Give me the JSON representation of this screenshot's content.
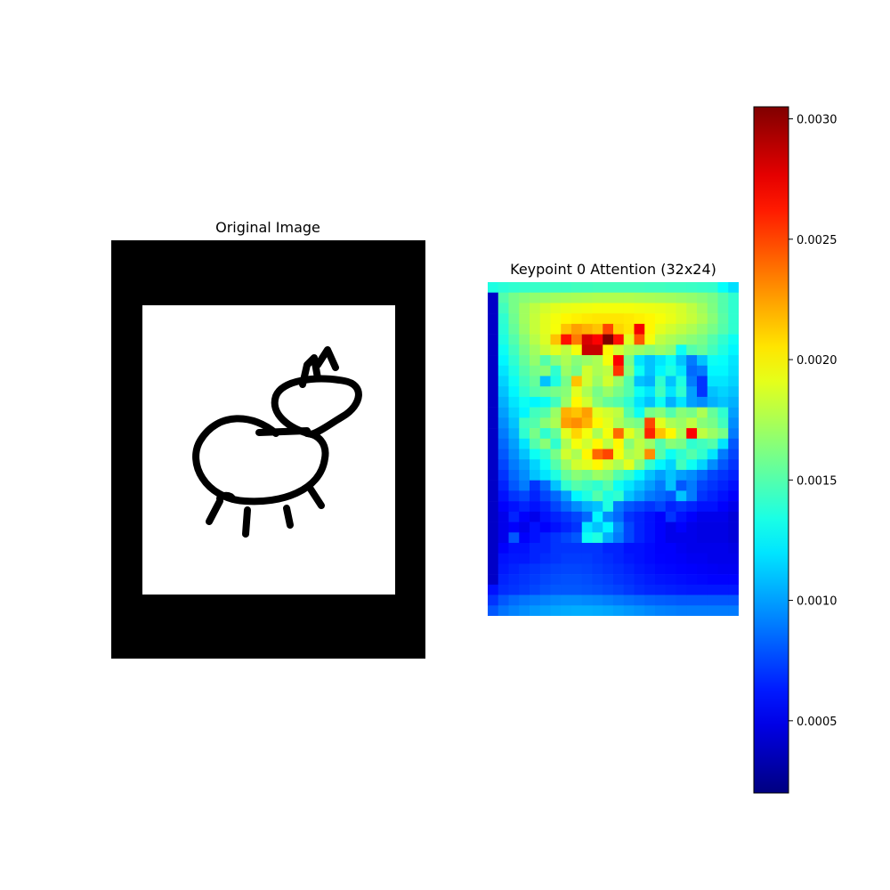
{
  "figure": {
    "left_title": "Original Image",
    "right_title": "Keypoint 0 Attention (32x24)"
  },
  "original_image": {
    "description_icon": "doodle-animal-drawing",
    "background_color": "#000000",
    "paper_color": "#ffffff",
    "stroke_color": "#000000"
  },
  "chart_data": {
    "type": "heatmap",
    "title": "Keypoint 0 Attention (32x24)",
    "rows": 32,
    "cols": 24,
    "colormap": "jet",
    "vmin": 0.0002,
    "vmax": 0.00305,
    "colorbar_ticks": [
      0.0005,
      0.001,
      0.0015,
      0.002,
      0.0025,
      0.003
    ],
    "colorbar_tick_labels": [
      "0.0005",
      "0.0010",
      "0.0015",
      "0.0020",
      "0.0025",
      "0.0030"
    ],
    "values": [
      [
        0.00135,
        0.00138,
        0.0014,
        0.00141,
        0.00142,
        0.00143,
        0.00144,
        0.00144,
        0.00145,
        0.00145,
        0.00146,
        0.00146,
        0.00146,
        0.00146,
        0.00146,
        0.00145,
        0.00145,
        0.00144,
        0.00144,
        0.00143,
        0.00142,
        0.00141,
        0.00128,
        0.00118
      ],
      [
        0.0004,
        0.0015,
        0.0016,
        0.00165,
        0.00168,
        0.0017,
        0.00172,
        0.00173,
        0.00174,
        0.00175,
        0.00176,
        0.00176,
        0.00176,
        0.00176,
        0.00175,
        0.00174,
        0.00173,
        0.00172,
        0.0017,
        0.00168,
        0.00165,
        0.0016,
        0.0015,
        0.0014
      ],
      [
        0.0004,
        0.00145,
        0.0016,
        0.00172,
        0.0018,
        0.00186,
        0.0019,
        0.00192,
        0.00193,
        0.00194,
        0.00195,
        0.00195,
        0.00195,
        0.00195,
        0.00194,
        0.00193,
        0.00192,
        0.0019,
        0.00186,
        0.0018,
        0.00172,
        0.00162,
        0.0015,
        0.0014
      ],
      [
        0.0004,
        0.0014,
        0.00158,
        0.00172,
        0.00182,
        0.0019,
        0.00195,
        0.002,
        0.00202,
        0.00204,
        0.00205,
        0.00205,
        0.00205,
        0.00204,
        0.00202,
        0.002,
        0.00196,
        0.00192,
        0.00187,
        0.00182,
        0.00175,
        0.00165,
        0.00152,
        0.0014
      ],
      [
        0.0004,
        0.00138,
        0.00155,
        0.0017,
        0.00182,
        0.0019,
        0.00196,
        0.00215,
        0.00225,
        0.0022,
        0.00215,
        0.0025,
        0.0021,
        0.00205,
        0.00272,
        0.002,
        0.0019,
        0.00185,
        0.0018,
        0.00175,
        0.00168,
        0.0016,
        0.0015,
        0.0014
      ],
      [
        0.0004,
        0.00135,
        0.0015,
        0.00165,
        0.00178,
        0.00188,
        0.00215,
        0.00265,
        0.00235,
        0.0028,
        0.0027,
        0.00305,
        0.00265,
        0.0019,
        0.00245,
        0.00195,
        0.0018,
        0.00175,
        0.0017,
        0.00165,
        0.0016,
        0.0015,
        0.0014,
        0.0013
      ],
      [
        0.0004,
        0.0013,
        0.00145,
        0.0016,
        0.00172,
        0.00182,
        0.0019,
        0.0018,
        0.00195,
        0.00285,
        0.00285,
        0.002,
        0.00185,
        0.00175,
        0.0017,
        0.00165,
        0.0017,
        0.00165,
        0.0013,
        0.0015,
        0.00155,
        0.00145,
        0.00135,
        0.00125
      ],
      [
        0.0004,
        0.00125,
        0.0014,
        0.00155,
        0.00168,
        0.0015,
        0.00165,
        0.00175,
        0.00165,
        0.0017,
        0.00175,
        0.00195,
        0.0027,
        0.0016,
        0.0012,
        0.0011,
        0.0012,
        0.0013,
        0.0011,
        0.0009,
        0.0011,
        0.0013,
        0.00128,
        0.0012
      ],
      [
        0.0004,
        0.0012,
        0.00135,
        0.0015,
        0.0016,
        0.00165,
        0.0014,
        0.0017,
        0.0016,
        0.00185,
        0.00175,
        0.0018,
        0.00255,
        0.00165,
        0.0013,
        0.0011,
        0.00125,
        0.00135,
        0.0012,
        0.00085,
        0.0009,
        0.00125,
        0.00125,
        0.00118
      ],
      [
        0.0004,
        0.00115,
        0.0013,
        0.00145,
        0.00155,
        0.0011,
        0.00135,
        0.0016,
        0.00215,
        0.00185,
        0.0017,
        0.00185,
        0.0017,
        0.0015,
        0.0011,
        0.00105,
        0.0014,
        0.0011,
        0.00135,
        0.0009,
        0.0007,
        0.0012,
        0.0012,
        0.00115
      ],
      [
        0.0004,
        0.0011,
        0.00125,
        0.0014,
        0.0015,
        0.00155,
        0.0016,
        0.00165,
        0.0019,
        0.00175,
        0.0016,
        0.0017,
        0.0016,
        0.0015,
        0.0013,
        0.0012,
        0.00145,
        0.0012,
        0.0014,
        0.001,
        0.0007,
        0.0011,
        0.00115,
        0.0011
      ],
      [
        0.0004,
        0.00105,
        0.0012,
        0.0013,
        0.00125,
        0.0013,
        0.00145,
        0.0017,
        0.002,
        0.00185,
        0.00165,
        0.00155,
        0.0015,
        0.0014,
        0.0012,
        0.0011,
        0.0013,
        0.00105,
        0.0012,
        0.001,
        0.00095,
        0.00105,
        0.0011,
        0.00105
      ],
      [
        0.0004,
        0.001,
        0.00115,
        0.00125,
        0.00145,
        0.0015,
        0.0017,
        0.0022,
        0.00215,
        0.00225,
        0.0019,
        0.00185,
        0.0018,
        0.0015,
        0.0013,
        0.0016,
        0.00165,
        0.0015,
        0.00165,
        0.0016,
        0.00175,
        0.00155,
        0.0014,
        0.001
      ],
      [
        0.0004,
        0.00095,
        0.0011,
        0.00145,
        0.0015,
        0.00165,
        0.00175,
        0.00225,
        0.0023,
        0.0022,
        0.002,
        0.0019,
        0.00175,
        0.00165,
        0.0016,
        0.0025,
        0.0019,
        0.00175,
        0.0017,
        0.0018,
        0.00165,
        0.0016,
        0.00145,
        0.00095
      ],
      [
        0.0004,
        0.0009,
        0.00105,
        0.0014,
        0.0016,
        0.0014,
        0.00155,
        0.0019,
        0.0021,
        0.00195,
        0.00175,
        0.00195,
        0.0024,
        0.0019,
        0.00175,
        0.0026,
        0.00215,
        0.002,
        0.00175,
        0.0027,
        0.0018,
        0.0017,
        0.0016,
        0.0009
      ],
      [
        0.0004,
        0.00085,
        0.001,
        0.0012,
        0.0015,
        0.00165,
        0.0014,
        0.00175,
        0.00195,
        0.00185,
        0.002,
        0.0018,
        0.002,
        0.00165,
        0.0018,
        0.0017,
        0.0015,
        0.00165,
        0.0016,
        0.0014,
        0.00145,
        0.0015,
        0.0012,
        0.0008
      ],
      [
        0.0004,
        0.0008,
        0.00095,
        0.0011,
        0.0013,
        0.0014,
        0.0016,
        0.00185,
        0.00175,
        0.002,
        0.0024,
        0.0025,
        0.00195,
        0.00175,
        0.0018,
        0.0023,
        0.0015,
        0.0013,
        0.0014,
        0.0015,
        0.0014,
        0.0012,
        0.0009,
        0.00075
      ],
      [
        0.0004,
        0.00075,
        0.0009,
        0.001,
        0.00115,
        0.0013,
        0.0015,
        0.0017,
        0.00185,
        0.0019,
        0.002,
        0.00185,
        0.00175,
        0.0019,
        0.00165,
        0.0014,
        0.00125,
        0.00115,
        0.00145,
        0.0013,
        0.00115,
        0.00095,
        0.0008,
        0.0007
      ],
      [
        0.0004,
        0.0007,
        0.00085,
        0.00095,
        0.0011,
        0.0012,
        0.00135,
        0.00155,
        0.00165,
        0.0016,
        0.0017,
        0.00165,
        0.0015,
        0.0014,
        0.00125,
        0.0011,
        0.001,
        0.0011,
        0.001,
        0.00095,
        0.00085,
        0.00075,
        0.0007,
        0.00065
      ],
      [
        0.0004,
        0.00065,
        0.0008,
        0.0009,
        0.0007,
        0.00085,
        0.0011,
        0.0014,
        0.0015,
        0.00145,
        0.0014,
        0.0015,
        0.0013,
        0.0012,
        0.0011,
        0.001,
        0.0009,
        0.0011,
        0.0008,
        0.0009,
        0.00075,
        0.0007,
        0.00065,
        0.0006
      ],
      [
        0.0004,
        0.0006,
        0.0007,
        0.00075,
        0.00065,
        0.00075,
        0.00085,
        0.001,
        0.00125,
        0.00135,
        0.0015,
        0.00135,
        0.0014,
        0.0011,
        0.001,
        0.0009,
        0.00085,
        0.0008,
        0.0011,
        0.0009,
        0.0007,
        0.00065,
        0.0006,
        0.00055
      ],
      [
        0.0004,
        0.00055,
        0.0006,
        0.00065,
        0.0006,
        0.00065,
        0.00075,
        0.00085,
        0.00095,
        0.00105,
        0.0011,
        0.00135,
        0.0009,
        0.0008,
        0.00075,
        0.0007,
        0.00075,
        0.00065,
        0.0007,
        0.00065,
        0.0006,
        0.0006,
        0.00055,
        0.0005
      ],
      [
        0.0004,
        0.0005,
        0.00065,
        0.00055,
        0.0005,
        0.0006,
        0.00065,
        0.0007,
        0.00075,
        0.00085,
        0.00125,
        0.00095,
        0.00085,
        0.0007,
        0.00065,
        0.0006,
        0.00055,
        0.0007,
        0.0006,
        0.00055,
        0.0005,
        0.0005,
        0.0005,
        0.00045
      ],
      [
        0.0004,
        0.0005,
        0.00055,
        0.0005,
        0.0006,
        0.00055,
        0.0006,
        0.00065,
        0.0007,
        0.0012,
        0.0011,
        0.00125,
        0.00095,
        0.00075,
        0.00065,
        0.0006,
        0.00055,
        0.0005,
        0.00055,
        0.0005,
        0.00048,
        0.00048,
        0.00048,
        0.00045
      ],
      [
        0.0004,
        0.0005,
        0.0008,
        0.00055,
        0.0006,
        0.00065,
        0.0007,
        0.00075,
        0.0008,
        0.0013,
        0.00135,
        0.00105,
        0.0009,
        0.00075,
        0.00065,
        0.0006,
        0.00055,
        0.0005,
        0.0005,
        0.0005,
        0.00048,
        0.00048,
        0.00048,
        0.00045
      ],
      [
        0.0004,
        0.00055,
        0.0006,
        0.0006,
        0.00065,
        0.00065,
        0.0007,
        0.0007,
        0.0007,
        0.0007,
        0.0007,
        0.00065,
        0.00065,
        0.0006,
        0.0006,
        0.00058,
        0.00055,
        0.00055,
        0.00052,
        0.0005,
        0.0005,
        0.0005,
        0.0005,
        0.00048
      ],
      [
        0.0004,
        0.0006,
        0.00062,
        0.00062,
        0.00065,
        0.00068,
        0.0007,
        0.00072,
        0.00072,
        0.00072,
        0.0007,
        0.00068,
        0.00065,
        0.00062,
        0.0006,
        0.00058,
        0.00056,
        0.00055,
        0.00054,
        0.00052,
        0.00052,
        0.0005,
        0.0005,
        0.0005
      ],
      [
        0.0004,
        0.00062,
        0.00065,
        0.00068,
        0.0007,
        0.00072,
        0.00074,
        0.00075,
        0.00075,
        0.00074,
        0.00072,
        0.0007,
        0.00068,
        0.00065,
        0.00062,
        0.0006,
        0.00058,
        0.00057,
        0.00056,
        0.00055,
        0.00054,
        0.00053,
        0.00052,
        0.00052
      ],
      [
        0.0004,
        0.00065,
        0.00068,
        0.0007,
        0.00072,
        0.00075,
        0.00077,
        0.00078,
        0.00078,
        0.00077,
        0.00075,
        0.00073,
        0.0007,
        0.00068,
        0.00065,
        0.00063,
        0.00061,
        0.0006,
        0.00059,
        0.00058,
        0.00057,
        0.00056,
        0.00056,
        0.00056
      ],
      [
        0.0006,
        0.00068,
        0.0007,
        0.00072,
        0.00075,
        0.00078,
        0.0008,
        0.0008,
        0.0008,
        0.00079,
        0.00078,
        0.00076,
        0.00074,
        0.00071,
        0.00068,
        0.00066,
        0.00065,
        0.00064,
        0.00063,
        0.00062,
        0.00062,
        0.00062,
        0.00062,
        0.00062
      ],
      [
        0.0007,
        0.0008,
        0.00085,
        0.00088,
        0.0009,
        0.00092,
        0.00094,
        0.00095,
        0.00095,
        0.00094,
        0.00093,
        0.00091,
        0.00089,
        0.00087,
        0.00085,
        0.00083,
        0.00082,
        0.00081,
        0.0008,
        0.0008,
        0.0008,
        0.0008,
        0.0008,
        0.0008
      ],
      [
        0.0008,
        0.00088,
        0.00092,
        0.00095,
        0.00098,
        0.001,
        0.00102,
        0.00103,
        0.00104,
        0.00104,
        0.00103,
        0.00102,
        0.001,
        0.00098,
        0.00096,
        0.00094,
        0.00092,
        0.00091,
        0.0009,
        0.0009,
        0.0009,
        0.0009,
        0.0009,
        0.0009
      ]
    ]
  }
}
